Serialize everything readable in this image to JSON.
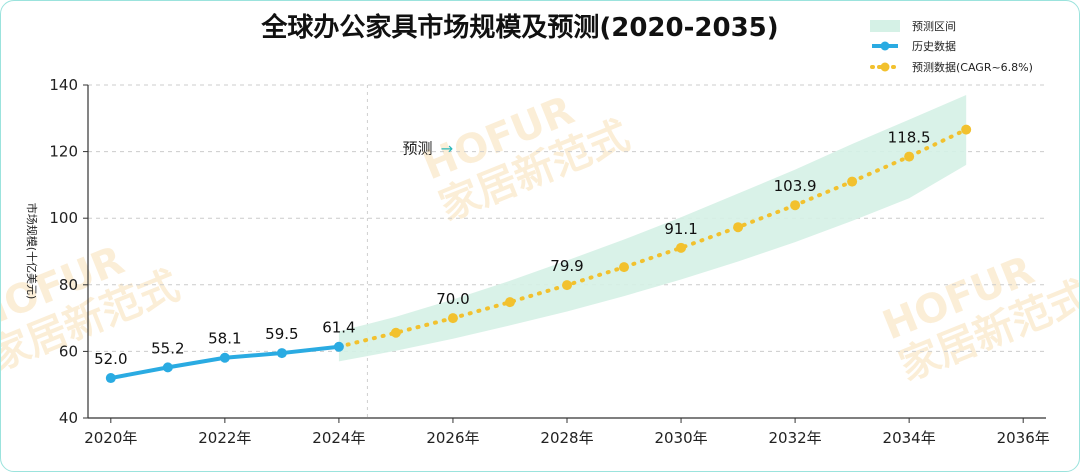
{
  "chart_data": {
    "type": "line",
    "title": "全球办公家具市场规模及预测(2020-2035)",
    "ylabel": "市场规模(十亿美元)",
    "xlabel": "",
    "xlim": [
      2019.6,
      2036.4
    ],
    "ylim": [
      40,
      140
    ],
    "yticks": [
      40,
      60,
      80,
      100,
      120,
      140
    ],
    "xticks": [
      2020,
      2022,
      2024,
      2026,
      2028,
      2030,
      2032,
      2034,
      2036
    ],
    "xtick_labels": [
      "2020年",
      "2022年",
      "2024年",
      "2026年",
      "2028年",
      "2030年",
      "2032年",
      "2034年",
      "2036年"
    ],
    "grid": "horizontal dashed",
    "legend_position": "top-right",
    "series": [
      {
        "name": "历史数据",
        "style": "solid",
        "color": "#2aabe2",
        "x": [
          2020,
          2021,
          2022,
          2023,
          2024
        ],
        "y": [
          52.0,
          55.2,
          58.1,
          59.5,
          61.4
        ]
      },
      {
        "name": "预测数据(CAGR~6.8%)",
        "style": "dotted",
        "color": "#f2c12e",
        "x": [
          2024,
          2025,
          2026,
          2027,
          2028,
          2029,
          2030,
          2031,
          2032,
          2033,
          2034,
          2035
        ],
        "y": [
          61.4,
          65.6,
          70.0,
          74.8,
          79.9,
          85.3,
          91.1,
          97.3,
          103.9,
          111.0,
          118.5,
          126.6
        ]
      }
    ],
    "band": {
      "name": "预测区间",
      "color": "#d5f1e6",
      "x": [
        2024,
        2025,
        2026,
        2027,
        2028,
        2029,
        2030,
        2031,
        2032,
        2033,
        2034,
        2035
      ],
      "lower": [
        57.0,
        60.2,
        63.8,
        67.8,
        72.0,
        76.6,
        81.6,
        87.0,
        92.8,
        99.2,
        106.0,
        116.0
      ],
      "upper": [
        66.0,
        70.4,
        75.6,
        81.2,
        87.3,
        93.6,
        100.3,
        107.4,
        114.6,
        122.3,
        129.6,
        137.0
      ]
    },
    "data_labels": [
      {
        "x": 2020,
        "y": 52.0,
        "text": "52.0"
      },
      {
        "x": 2021,
        "y": 55.2,
        "text": "55.2"
      },
      {
        "x": 2022,
        "y": 58.1,
        "text": "58.1"
      },
      {
        "x": 2023,
        "y": 59.5,
        "text": "59.5"
      },
      {
        "x": 2024,
        "y": 61.4,
        "text": "61.4"
      },
      {
        "x": 2026,
        "y": 70.0,
        "text": "70.0"
      },
      {
        "x": 2028,
        "y": 79.9,
        "text": "79.9"
      },
      {
        "x": 2030,
        "y": 91.1,
        "text": "91.1"
      },
      {
        "x": 2032,
        "y": 103.9,
        "text": "103.9"
      },
      {
        "x": 2034,
        "y": 118.5,
        "text": "118.5"
      }
    ],
    "divider_x": 2024.5,
    "annotation": {
      "text": "预测",
      "arrow": "→",
      "x": 2024.8,
      "y": 121
    }
  },
  "watermark": {
    "line1": "HOFUR",
    "line2": "家居新范式"
  }
}
